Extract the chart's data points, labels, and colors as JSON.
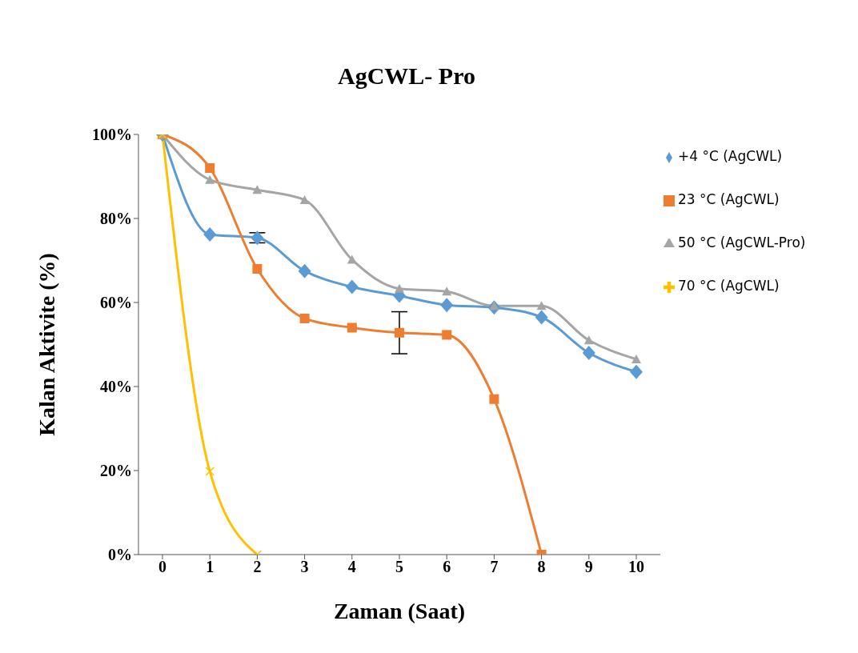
{
  "chart_data": {
    "type": "line",
    "title": "AgCWL- Pro",
    "xlabel": "Zaman (Saat)",
    "ylabel": "Kalan Aktivite (%)",
    "categories": [
      "0",
      "1",
      "2",
      "3",
      "4",
      "5",
      "6",
      "7",
      "8",
      "9",
      "10"
    ],
    "series": [
      {
        "name": "+4 °C (AgCWL)",
        "color": "#5b9bd5",
        "marker": "diamond",
        "values": [
          100,
          76.2,
          75.4,
          67.5,
          63.7,
          61.6,
          59.4,
          58.8,
          56.5,
          48,
          43.5
        ],
        "errors": [
          null,
          null,
          1.2,
          null,
          null,
          null,
          null,
          null,
          null,
          null,
          null
        ]
      },
      {
        "name": "23 °C (AgCWL)",
        "color": "#ed7d31",
        "marker": "square",
        "values": [
          100,
          92,
          68,
          56.2,
          54,
          52.8,
          52.3,
          37,
          0,
          null,
          null
        ],
        "errors": [
          null,
          null,
          null,
          null,
          null,
          5,
          null,
          null,
          null,
          null,
          null
        ]
      },
      {
        "name": "50 °C (AgCWL-Pro)",
        "color": "#a5a5a5",
        "marker": "triangle",
        "values": [
          100,
          89.2,
          86.8,
          84.4,
          70.2,
          63.3,
          62.6,
          59.2,
          59.2,
          51,
          46.5
        ]
      },
      {
        "name": "70 °C (AgCWL)",
        "color": "#ffc000",
        "marker": "cross",
        "values": [
          100,
          19.8,
          0,
          null,
          null,
          null,
          null,
          null,
          null,
          null,
          null
        ]
      }
    ],
    "ylim": [
      0,
      100
    ],
    "yticks": [
      {
        "value": 0,
        "label": "0%"
      },
      {
        "value": 20,
        "label": "20%"
      },
      {
        "value": 40,
        "label": "40%"
      },
      {
        "value": 60,
        "label": "60%"
      },
      {
        "value": 80,
        "label": "80%"
      },
      {
        "value": 100,
        "label": "100%"
      }
    ],
    "grid": false,
    "legend": "right"
  }
}
